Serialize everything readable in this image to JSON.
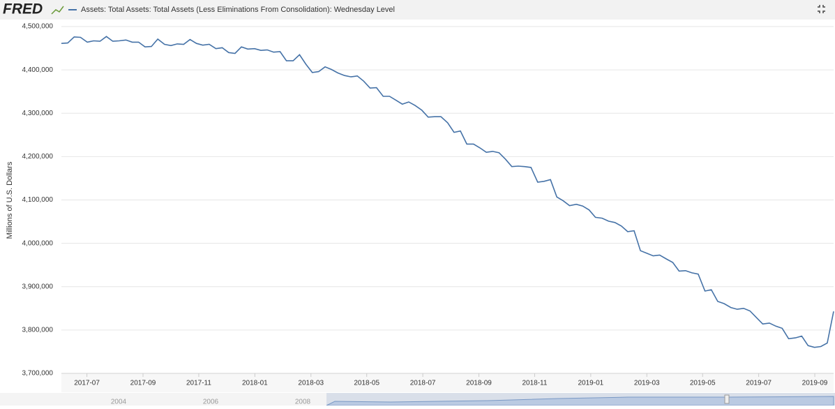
{
  "header": {
    "logo": "FRED"
  },
  "chart_data": {
    "type": "line",
    "y_label": "Millions of U.S. Dollars",
    "x": [
      2017.424,
      2017.443,
      2017.462,
      2017.481,
      2017.501,
      2017.52,
      2017.539,
      2017.558,
      2017.577,
      2017.596,
      2017.616,
      2017.635,
      2017.654,
      2017.673,
      2017.692,
      2017.711,
      2017.731,
      2017.75,
      2017.769,
      2017.788,
      2017.807,
      2017.826,
      2017.845,
      2017.864,
      2017.884,
      2017.903,
      2017.922,
      2017.941,
      2017.96,
      2017.979,
      2017.999,
      2018.018,
      2018.037,
      2018.056,
      2018.075,
      2018.094,
      2018.114,
      2018.133,
      2018.152,
      2018.171,
      2018.19,
      2018.209,
      2018.228,
      2018.247,
      2018.267,
      2018.286,
      2018.305,
      2018.324,
      2018.343,
      2018.362,
      2018.382,
      2018.401,
      2018.42,
      2018.439,
      2018.458,
      2018.477,
      2018.497,
      2018.516,
      2018.535,
      2018.554,
      2018.574,
      2018.593,
      2018.612,
      2018.631,
      2018.651,
      2018.67,
      2018.689,
      2018.708,
      2018.727,
      2018.746,
      2018.765,
      2018.784,
      2018.803,
      2018.822,
      2018.842,
      2018.861,
      2018.88,
      2018.899,
      2018.918,
      2018.937,
      2018.957,
      2018.976,
      2018.995,
      2019.014,
      2019.034,
      2019.053,
      2019.072,
      2019.091,
      2019.11,
      2019.129,
      2019.148,
      2019.167,
      2019.186,
      2019.205,
      2019.225,
      2019.244,
      2019.263,
      2019.282,
      2019.301,
      2019.32,
      2019.34,
      2019.359,
      2019.378,
      2019.397,
      2019.417,
      2019.436,
      2019.455,
      2019.474,
      2019.493,
      2019.512,
      2019.532,
      2019.551,
      2019.57,
      2019.589,
      2019.609,
      2019.628,
      2019.647,
      2019.666,
      2019.685,
      2019.704,
      2019.723
    ],
    "series": [
      {
        "name": "Assets: Total Assets: Total Assets (Less Eliminations From Consolidation): Wednesday Level",
        "color": "#4572a7",
        "values": [
          4461000,
          4462000,
          4476000,
          4475000,
          4464000,
          4467000,
          4466000,
          4477000,
          4466000,
          4467000,
          4469000,
          4464000,
          4464000,
          4453000,
          4454000,
          4471000,
          4459000,
          4456000,
          4460000,
          4459000,
          4470000,
          4461000,
          4457000,
          4459000,
          4449000,
          4451000,
          4440000,
          4438000,
          4453000,
          4448000,
          4449000,
          4445000,
          4446000,
          4441000,
          4442000,
          4421000,
          4421000,
          4435000,
          4413000,
          4394000,
          4396000,
          4407000,
          4401000,
          4393000,
          4387000,
          4384000,
          4386000,
          4374000,
          4358000,
          4359000,
          4339000,
          4339000,
          4330000,
          4321000,
          4326000,
          4318000,
          4307000,
          4291000,
          4292000,
          4292000,
          4278000,
          4256000,
          4259000,
          4229000,
          4229000,
          4220000,
          4210000,
          4212000,
          4209000,
          4194000,
          4177000,
          4178000,
          4177000,
          4175000,
          4141000,
          4143000,
          4147000,
          4107000,
          4098000,
          4087000,
          4090000,
          4086000,
          4077000,
          4060000,
          4058000,
          4051000,
          4048000,
          4040000,
          4027000,
          4029000,
          3983000,
          3977000,
          3971000,
          3973000,
          3964000,
          3956000,
          3936000,
          3937000,
          3932000,
          3929000,
          3890000,
          3893000,
          3866000,
          3861000,
          3852000,
          3848000,
          3850000,
          3844000,
          3829000,
          3814000,
          3816000,
          3809000,
          3804000,
          3780000,
          3782000,
          3786000,
          3764000,
          3760000,
          3762000,
          3770000,
          3843000
        ]
      }
    ],
    "xlim": [
      2017.424,
      2019.723
    ],
    "xticks": [
      {
        "value": 2017.5,
        "label": "2017-07"
      },
      {
        "value": 2017.667,
        "label": "2017-09"
      },
      {
        "value": 2017.833,
        "label": "2017-11"
      },
      {
        "value": 2018.0,
        "label": "2018-01"
      },
      {
        "value": 2018.167,
        "label": "2018-03"
      },
      {
        "value": 2018.333,
        "label": "2018-05"
      },
      {
        "value": 2018.5,
        "label": "2018-07"
      },
      {
        "value": 2018.667,
        "label": "2018-09"
      },
      {
        "value": 2018.833,
        "label": "2018-11"
      },
      {
        "value": 2019.0,
        "label": "2019-01"
      },
      {
        "value": 2019.167,
        "label": "2019-03"
      },
      {
        "value": 2019.333,
        "label": "2019-05"
      },
      {
        "value": 2019.5,
        "label": "2019-07"
      },
      {
        "value": 2019.667,
        "label": "2019-09"
      }
    ],
    "ylim": [
      3700000,
      4500000
    ],
    "yticks": [
      {
        "value": 3700000,
        "label": "3,700,000"
      },
      {
        "value": 3800000,
        "label": "3,800,000"
      },
      {
        "value": 3900000,
        "label": "3,900,000"
      },
      {
        "value": 4000000,
        "label": "4,000,000"
      },
      {
        "value": 4100000,
        "label": "4,100,000"
      },
      {
        "value": 4200000,
        "label": "4,200,000"
      },
      {
        "value": 4300000,
        "label": "4,300,000"
      },
      {
        "value": 4400000,
        "label": "4,400,000"
      },
      {
        "value": 4500000,
        "label": "4,500,000"
      }
    ],
    "grid": true
  },
  "navigator": {
    "labels": [
      "2004",
      "2006",
      "2008"
    ]
  }
}
